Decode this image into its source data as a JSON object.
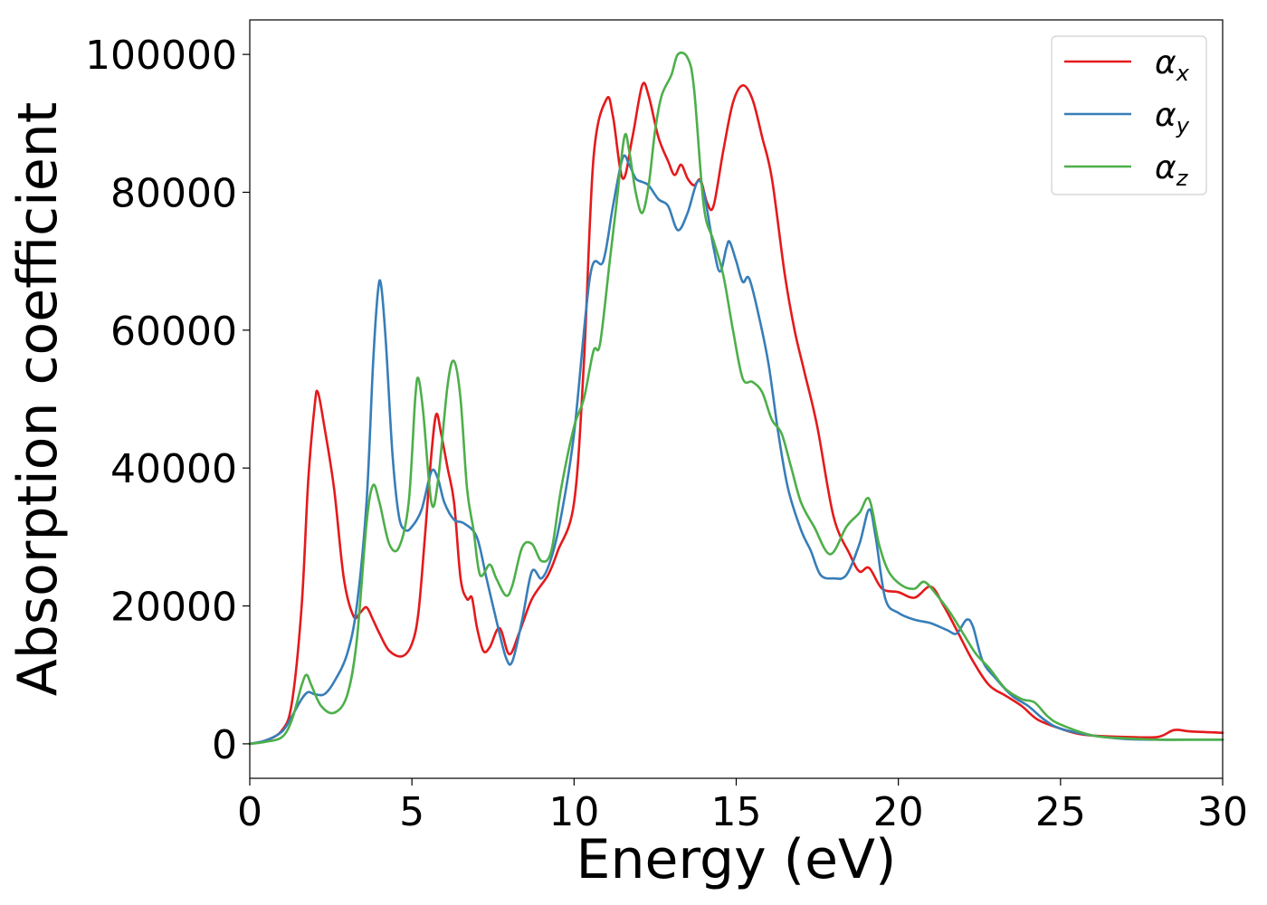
{
  "chart_data": {
    "type": "line",
    "xlabel": "Energy (eV)",
    "ylabel": "Absorption coefficient",
    "xlim": [
      0,
      30
    ],
    "ylim": [
      -5000,
      105000
    ],
    "x_ticks": [
      0,
      5,
      10,
      15,
      20,
      25,
      30
    ],
    "y_ticks": [
      0,
      20000,
      40000,
      60000,
      80000,
      100000
    ],
    "x_tick_labels": [
      "0",
      "5",
      "10",
      "15",
      "20",
      "25",
      "30"
    ],
    "y_tick_labels": [
      "0",
      "20000",
      "40000",
      "60000",
      "80000",
      "100000"
    ],
    "grid": false,
    "legend_position": "top-right",
    "series": [
      {
        "name": "αx",
        "name_base": "α",
        "name_sub": "x",
        "color": "#e41a1c",
        "points": [
          [
            0,
            0
          ],
          [
            0.5,
            500
          ],
          [
            1,
            2000
          ],
          [
            1.3,
            6000
          ],
          [
            1.6,
            20000
          ],
          [
            1.8,
            38000
          ],
          [
            2,
            49000
          ],
          [
            2.1,
            51000
          ],
          [
            2.3,
            46000
          ],
          [
            2.6,
            37000
          ],
          [
            2.9,
            24000
          ],
          [
            3.2,
            18500
          ],
          [
            3.4,
            19000
          ],
          [
            3.6,
            19800
          ],
          [
            3.8,
            18000
          ],
          [
            4,
            16000
          ],
          [
            4.3,
            13500
          ],
          [
            4.7,
            12700
          ],
          [
            5,
            14500
          ],
          [
            5.2,
            19000
          ],
          [
            5.4,
            30000
          ],
          [
            5.6,
            42000
          ],
          [
            5.75,
            47800
          ],
          [
            5.9,
            45000
          ],
          [
            6.1,
            40000
          ],
          [
            6.3,
            35000
          ],
          [
            6.5,
            24000
          ],
          [
            6.7,
            21000
          ],
          [
            6.85,
            21200
          ],
          [
            7,
            17000
          ],
          [
            7.2,
            13500
          ],
          [
            7.4,
            14000
          ],
          [
            7.7,
            16800
          ],
          [
            8,
            13000
          ],
          [
            8.3,
            16000
          ],
          [
            8.7,
            21000
          ],
          [
            9.2,
            24500
          ],
          [
            9.5,
            28000
          ],
          [
            10,
            35000
          ],
          [
            10.3,
            55000
          ],
          [
            10.6,
            85000
          ],
          [
            11,
            93500
          ],
          [
            11.2,
            91000
          ],
          [
            11.5,
            82000
          ],
          [
            11.8,
            88000
          ],
          [
            12.1,
            95500
          ],
          [
            12.3,
            94000
          ],
          [
            12.6,
            88000
          ],
          [
            12.9,
            84500
          ],
          [
            13.1,
            82500
          ],
          [
            13.3,
            84000
          ],
          [
            13.5,
            82000
          ],
          [
            13.7,
            81000
          ],
          [
            13.9,
            81800
          ],
          [
            14.1,
            78500
          ],
          [
            14.3,
            78000
          ],
          [
            14.6,
            86000
          ],
          [
            14.9,
            93000
          ],
          [
            15.2,
            95500
          ],
          [
            15.5,
            93500
          ],
          [
            15.8,
            88000
          ],
          [
            16.1,
            82000
          ],
          [
            16.5,
            68000
          ],
          [
            16.8,
            60000
          ],
          [
            17.1,
            54000
          ],
          [
            17.5,
            46000
          ],
          [
            18,
            33000
          ],
          [
            18.5,
            27500
          ],
          [
            18.8,
            25000
          ],
          [
            19.1,
            25500
          ],
          [
            19.5,
            22500
          ],
          [
            20,
            22000
          ],
          [
            20.5,
            21200
          ],
          [
            21,
            22800
          ],
          [
            21.4,
            20000
          ],
          [
            21.8,
            16500
          ],
          [
            22.3,
            12000
          ],
          [
            22.8,
            8500
          ],
          [
            23.3,
            7000
          ],
          [
            23.8,
            5500
          ],
          [
            24.3,
            3500
          ],
          [
            25,
            2200
          ],
          [
            25.5,
            1500
          ],
          [
            26,
            1200
          ],
          [
            27,
            1000
          ],
          [
            28,
            1000
          ],
          [
            28.5,
            2000
          ],
          [
            29,
            1800
          ],
          [
            30,
            1600
          ]
        ]
      },
      {
        "name": "αy",
        "name_base": "α",
        "name_sub": "y",
        "color": "#377eb8",
        "points": [
          [
            0,
            0
          ],
          [
            0.5,
            500
          ],
          [
            1,
            1800
          ],
          [
            1.3,
            4000
          ],
          [
            1.6,
            6500
          ],
          [
            1.8,
            7500
          ],
          [
            2,
            7200
          ],
          [
            2.3,
            7200
          ],
          [
            2.6,
            9000
          ],
          [
            3,
            13000
          ],
          [
            3.3,
            20000
          ],
          [
            3.6,
            35000
          ],
          [
            3.8,
            55000
          ],
          [
            3.95,
            65500
          ],
          [
            4.05,
            66500
          ],
          [
            4.2,
            58000
          ],
          [
            4.4,
            42000
          ],
          [
            4.6,
            33000
          ],
          [
            4.8,
            31000
          ],
          [
            5,
            31500
          ],
          [
            5.3,
            34000
          ],
          [
            5.6,
            39500
          ],
          [
            5.8,
            38500
          ],
          [
            6,
            35000
          ],
          [
            6.3,
            32500
          ],
          [
            6.6,
            32000
          ],
          [
            7,
            30000
          ],
          [
            7.3,
            24000
          ],
          [
            7.6,
            18000
          ],
          [
            7.9,
            12500
          ],
          [
            8.1,
            12000
          ],
          [
            8.4,
            18000
          ],
          [
            8.7,
            25000
          ],
          [
            9,
            24000
          ],
          [
            9.3,
            27000
          ],
          [
            9.6,
            33000
          ],
          [
            10,
            45000
          ],
          [
            10.5,
            68000
          ],
          [
            10.9,
            70000
          ],
          [
            11.2,
            78000
          ],
          [
            11.5,
            85000
          ],
          [
            11.7,
            84000
          ],
          [
            11.9,
            82000
          ],
          [
            12.1,
            81500
          ],
          [
            12.3,
            81000
          ],
          [
            12.6,
            79000
          ],
          [
            12.9,
            78000
          ],
          [
            13.2,
            74500
          ],
          [
            13.5,
            77000
          ],
          [
            13.8,
            81500
          ],
          [
            14,
            80000
          ],
          [
            14.3,
            72000
          ],
          [
            14.5,
            68500
          ],
          [
            14.7,
            72000
          ],
          [
            14.8,
            72800
          ],
          [
            15,
            70000
          ],
          [
            15.2,
            67000
          ],
          [
            15.4,
            67500
          ],
          [
            15.7,
            62000
          ],
          [
            16,
            55000
          ],
          [
            16.3,
            45000
          ],
          [
            16.6,
            37000
          ],
          [
            17,
            31000
          ],
          [
            17.3,
            28000
          ],
          [
            17.6,
            24500
          ],
          [
            18,
            24000
          ],
          [
            18.4,
            24500
          ],
          [
            18.8,
            29000
          ],
          [
            19.1,
            34000
          ],
          [
            19.3,
            30000
          ],
          [
            19.6,
            21000
          ],
          [
            20,
            19000
          ],
          [
            20.5,
            18000
          ],
          [
            21,
            17500
          ],
          [
            21.5,
            16500
          ],
          [
            21.8,
            16000
          ],
          [
            22.1,
            18000
          ],
          [
            22.3,
            17000
          ],
          [
            22.6,
            12000
          ],
          [
            23,
            9500
          ],
          [
            23.5,
            7000
          ],
          [
            24,
            5500
          ],
          [
            24.5,
            3500
          ],
          [
            25,
            2200
          ],
          [
            26,
            1200
          ],
          [
            27,
            700
          ],
          [
            28,
            600
          ],
          [
            29,
            600
          ],
          [
            30,
            600
          ]
        ]
      },
      {
        "name": "αz",
        "name_base": "α",
        "name_sub": "z",
        "color": "#4daf4a",
        "points": [
          [
            0,
            0
          ],
          [
            0.5,
            300
          ],
          [
            1,
            1000
          ],
          [
            1.3,
            3500
          ],
          [
            1.6,
            8500
          ],
          [
            1.75,
            10000
          ],
          [
            1.9,
            8500
          ],
          [
            2.2,
            5500
          ],
          [
            2.6,
            4500
          ],
          [
            3,
            7000
          ],
          [
            3.3,
            15000
          ],
          [
            3.6,
            32000
          ],
          [
            3.8,
            37500
          ],
          [
            4,
            35000
          ],
          [
            4.3,
            29000
          ],
          [
            4.6,
            28500
          ],
          [
            4.9,
            35000
          ],
          [
            5.1,
            50000
          ],
          [
            5.2,
            53000
          ],
          [
            5.35,
            48000
          ],
          [
            5.6,
            35000
          ],
          [
            5.8,
            38000
          ],
          [
            6.1,
            52000
          ],
          [
            6.3,
            55500
          ],
          [
            6.5,
            50000
          ],
          [
            6.7,
            37000
          ],
          [
            6.9,
            31000
          ],
          [
            7.1,
            24500
          ],
          [
            7.4,
            26000
          ],
          [
            7.6,
            24000
          ],
          [
            7.9,
            21500
          ],
          [
            8.1,
            23000
          ],
          [
            8.4,
            28500
          ],
          [
            8.7,
            29000
          ],
          [
            9,
            26500
          ],
          [
            9.3,
            28000
          ],
          [
            9.6,
            37000
          ],
          [
            10,
            46000
          ],
          [
            10.3,
            50000
          ],
          [
            10.6,
            57000
          ],
          [
            10.8,
            58000
          ],
          [
            11.1,
            70000
          ],
          [
            11.3,
            78000
          ],
          [
            11.55,
            88000
          ],
          [
            11.7,
            86000
          ],
          [
            11.9,
            80000
          ],
          [
            12.1,
            77000
          ],
          [
            12.3,
            81000
          ],
          [
            12.5,
            89000
          ],
          [
            12.7,
            94000
          ],
          [
            13,
            97000
          ],
          [
            13.2,
            100000
          ],
          [
            13.5,
            99500
          ],
          [
            13.7,
            95000
          ],
          [
            14,
            78000
          ],
          [
            14.3,
            73000
          ],
          [
            14.6,
            68000
          ],
          [
            14.9,
            60000
          ],
          [
            15.2,
            53000
          ],
          [
            15.5,
            52500
          ],
          [
            15.8,
            51000
          ],
          [
            16.1,
            47000
          ],
          [
            16.4,
            45000
          ],
          [
            16.7,
            40000
          ],
          [
            17,
            35000
          ],
          [
            17.4,
            31500
          ],
          [
            17.9,
            27500
          ],
          [
            18.4,
            31500
          ],
          [
            18.8,
            33500
          ],
          [
            19.1,
            35500
          ],
          [
            19.4,
            29000
          ],
          [
            19.7,
            25000
          ],
          [
            20.1,
            23000
          ],
          [
            20.5,
            22500
          ],
          [
            20.8,
            23500
          ],
          [
            21.2,
            21500
          ],
          [
            21.6,
            19000
          ],
          [
            22,
            16000
          ],
          [
            22.4,
            13000
          ],
          [
            22.8,
            11000
          ],
          [
            23.3,
            8000
          ],
          [
            23.8,
            6500
          ],
          [
            24.2,
            6000
          ],
          [
            24.6,
            4000
          ],
          [
            25,
            2800
          ],
          [
            26,
            1200
          ],
          [
            27,
            800
          ],
          [
            28,
            600
          ],
          [
            29,
            600
          ],
          [
            30,
            600
          ]
        ]
      }
    ]
  }
}
